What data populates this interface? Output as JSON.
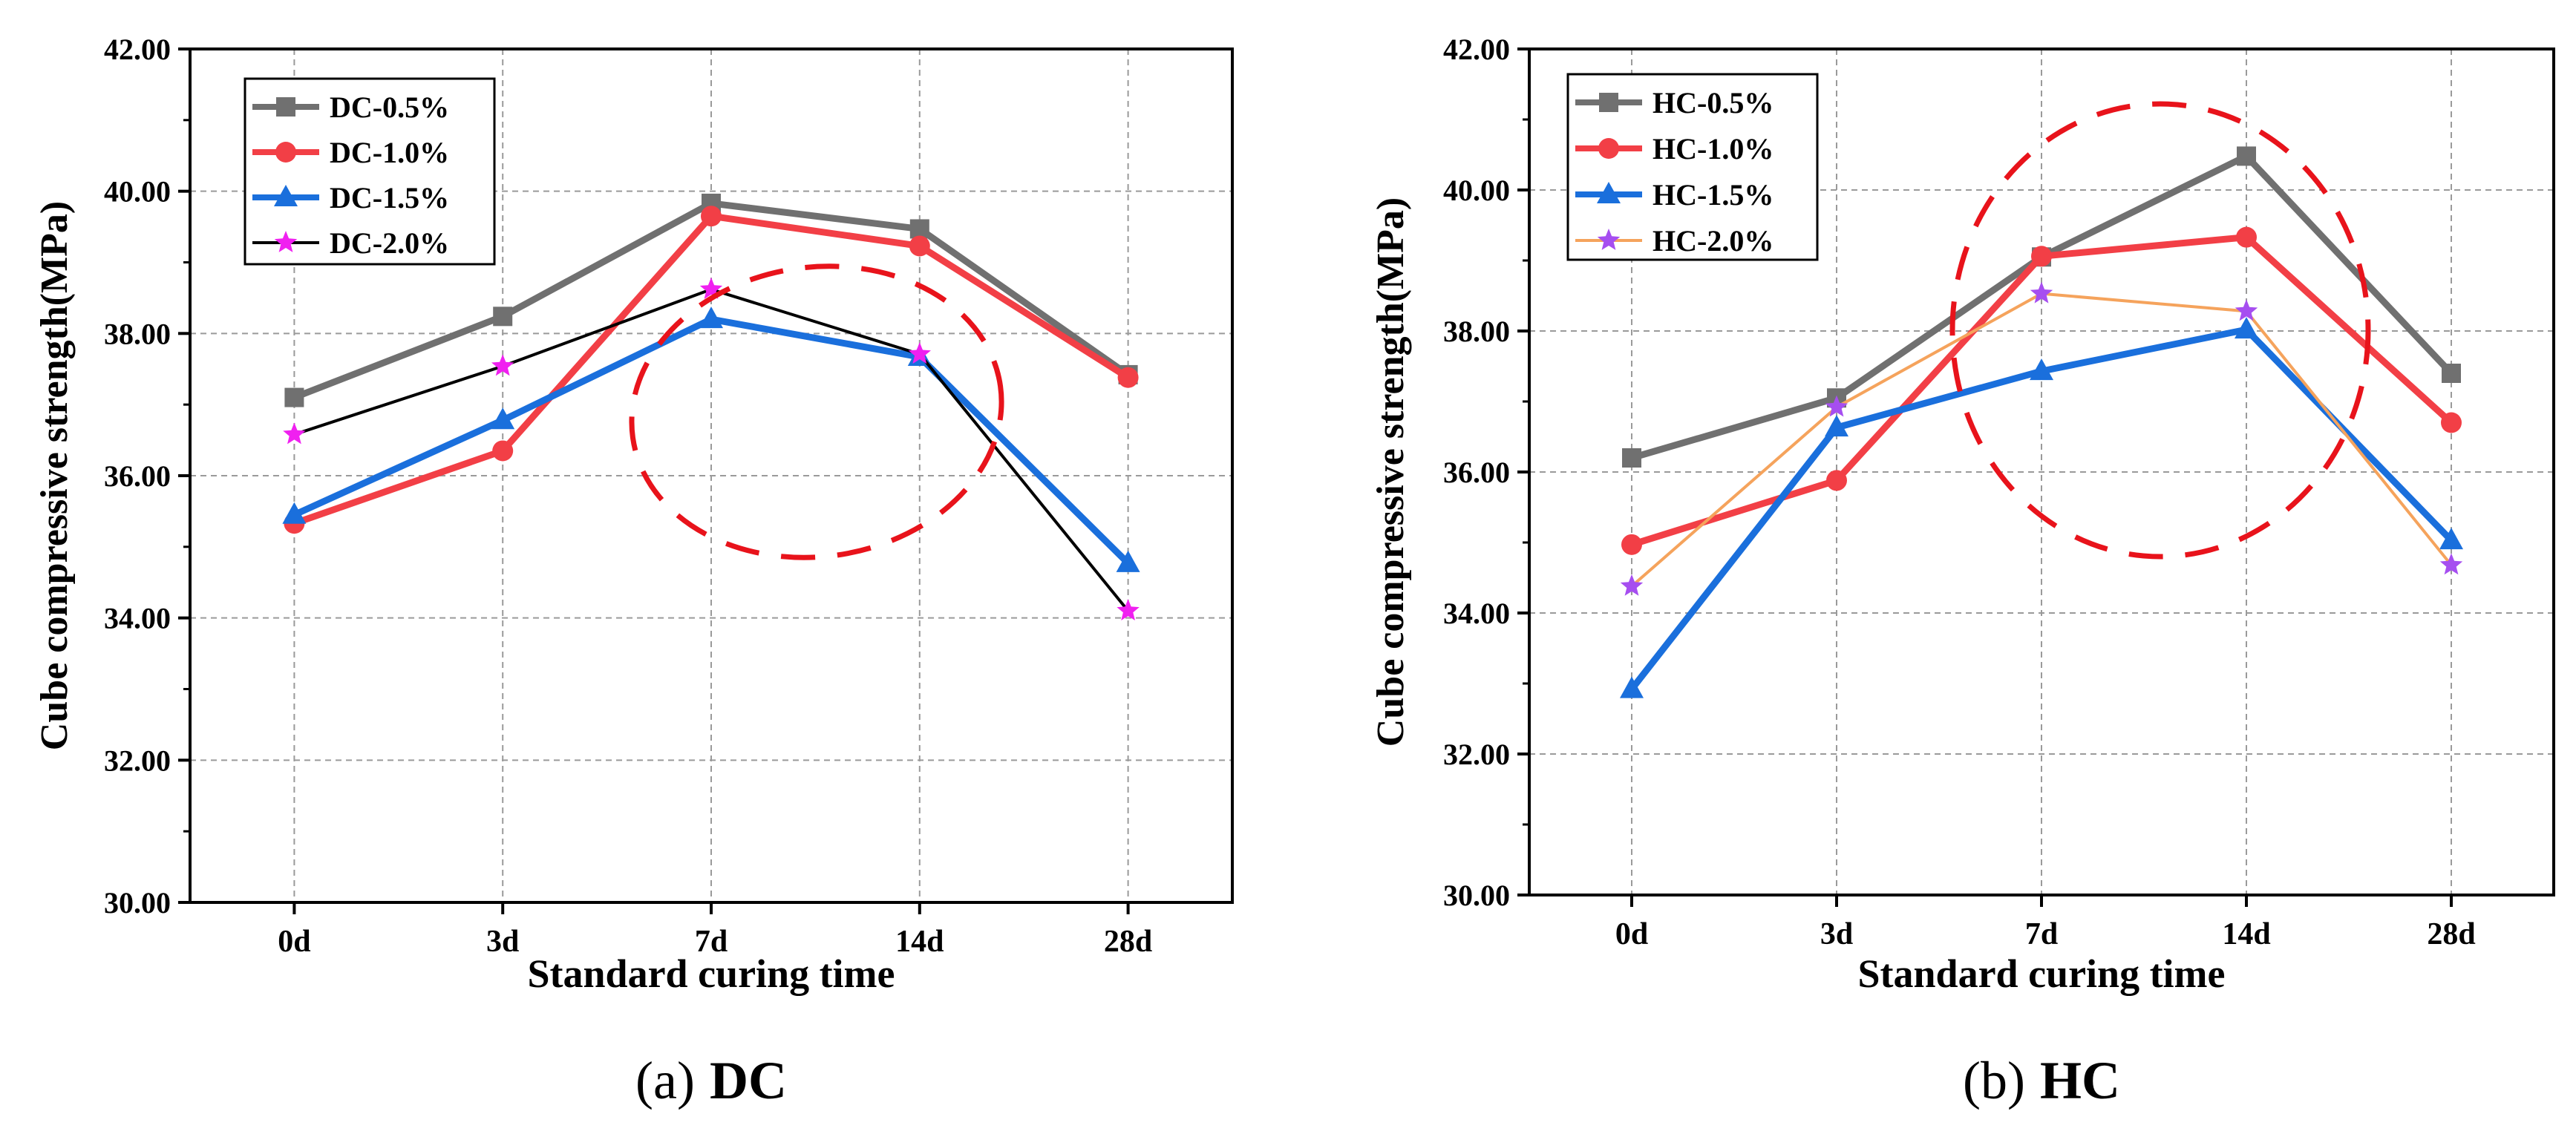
{
  "figure": {
    "panels": [
      "(a)",
      "(b)"
    ]
  },
  "chart_data": [
    {
      "type": "line",
      "panel": "(a)",
      "caption_label": "(a)",
      "caption_name": "DC",
      "xlabel": "Standard curing time",
      "ylabel": "Cube compressive strength(MPa)",
      "categories": [
        "0d",
        "3d",
        "7d",
        "14d",
        "28d"
      ],
      "ylim": [
        30,
        42
      ],
      "yticks": [
        "30.00",
        "32.00",
        "34.00",
        "36.00",
        "38.00",
        "40.00",
        "42.00"
      ],
      "grid": true,
      "legend_position": "top-left",
      "series": [
        {
          "name": "DC-0.5%",
          "values": [
            37.1,
            38.24,
            39.83,
            39.47,
            37.42
          ],
          "color": "#707070",
          "marker": "square",
          "line": "thick"
        },
        {
          "name": "DC-1.0%",
          "values": [
            35.33,
            36.35,
            39.65,
            39.23,
            37.38
          ],
          "color": "#f23f46",
          "marker": "circle",
          "line": "thick"
        },
        {
          "name": "DC-1.5%",
          "values": [
            35.45,
            36.78,
            38.2,
            37.67,
            34.77
          ],
          "color": "#1a6fdc",
          "marker": "triangle",
          "line": "thick"
        },
        {
          "name": "DC-2.0%",
          "values": [
            36.58,
            37.54,
            38.62,
            37.71,
            34.1
          ],
          "color": "#000000",
          "marker_color": "#f020f0",
          "marker": "star",
          "line": "thin"
        }
      ],
      "annotations": [
        {
          "type": "dashed-ellipse",
          "color": "#e8131b",
          "around": [
            "7d",
            "14d"
          ]
        }
      ]
    },
    {
      "type": "line",
      "panel": "(b)",
      "caption_label": "(b)",
      "caption_name": "HC",
      "xlabel": "Standard curing time",
      "ylabel": "Cube compressive strength(MPa)",
      "categories": [
        "0d",
        "3d",
        "7d",
        "14d",
        "28d"
      ],
      "ylim": [
        30,
        42
      ],
      "yticks": [
        "30.00",
        "32.00",
        "34.00",
        "36.00",
        "38.00",
        "40.00",
        "42.00"
      ],
      "grid": true,
      "legend_position": "top-left",
      "series": [
        {
          "name": "HC-0.5%",
          "values": [
            36.2,
            37.05,
            39.05,
            40.48,
            37.4
          ],
          "color": "#707070",
          "marker": "square",
          "line": "thick"
        },
        {
          "name": "HC-1.0%",
          "values": [
            34.97,
            35.88,
            39.06,
            39.33,
            36.7
          ],
          "color": "#f23f46",
          "marker": "circle",
          "line": "thick"
        },
        {
          "name": "HC-1.5%",
          "values": [
            32.92,
            36.63,
            37.43,
            38.02,
            35.03
          ],
          "color": "#1a6fdc",
          "marker": "triangle",
          "line": "thick"
        },
        {
          "name": "HC-2.0%",
          "values": [
            34.38,
            36.92,
            38.53,
            38.28,
            34.68
          ],
          "color": "#f5a35c",
          "marker_color": "#a64ef0",
          "marker": "star",
          "line": "thin"
        }
      ],
      "annotations": [
        {
          "type": "dashed-ellipse",
          "color": "#e8131b",
          "around": [
            "7d",
            "14d"
          ]
        }
      ]
    }
  ]
}
